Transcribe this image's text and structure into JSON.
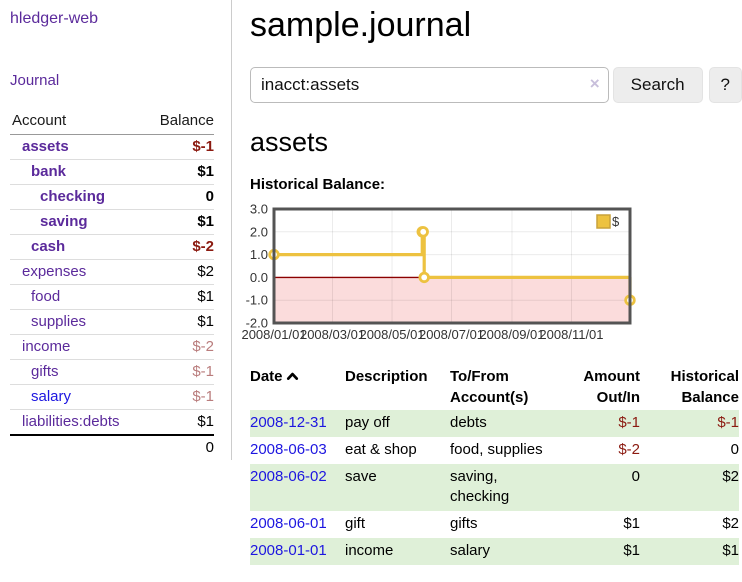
{
  "app": {
    "brand": "hledger-web"
  },
  "nav": {
    "journal": "Journal"
  },
  "sidebar": {
    "headers": {
      "account": "Account",
      "balance": "Balance"
    },
    "accounts": [
      {
        "name": "assets",
        "balance": "$-1"
      },
      {
        "name": "bank",
        "balance": "$1"
      },
      {
        "name": "checking",
        "balance": "0"
      },
      {
        "name": "saving",
        "balance": "$1"
      },
      {
        "name": "cash",
        "balance": "$-2"
      },
      {
        "name": "expenses",
        "balance": "$2"
      },
      {
        "name": "food",
        "balance": "$1"
      },
      {
        "name": "supplies",
        "balance": "$1"
      },
      {
        "name": "income",
        "balance": "$-2"
      },
      {
        "name": "gifts",
        "balance": "$-1"
      },
      {
        "name": "salary",
        "balance": "$-1"
      },
      {
        "name": "liabilities:debts",
        "balance": "$1"
      }
    ],
    "total": "0"
  },
  "header": {
    "title": "sample.journal"
  },
  "search": {
    "value": "inacct:assets",
    "clear_icon": "×",
    "button_label": "Search",
    "help_label": "?"
  },
  "account_page": {
    "heading": "assets",
    "chart_label": "Historical Balance:"
  },
  "chart_data": {
    "type": "line",
    "title": "Historical Balance:",
    "x_range": [
      "2008-01-01",
      "2008-12-31"
    ],
    "ylim": [
      -2,
      3
    ],
    "yticks": [
      {
        "v": 3,
        "label": "3.0"
      },
      {
        "v": 2,
        "label": "2.0"
      },
      {
        "v": 1,
        "label": "1.0"
      },
      {
        "v": 0,
        "label": "0.0"
      },
      {
        "v": -1,
        "label": "-1.0"
      },
      {
        "v": -2,
        "label": "-2.0"
      }
    ],
    "xticks": [
      {
        "d": "2008-01-01",
        "label": "2008/01/01"
      },
      {
        "d": "2008-03-01",
        "label": "2008/03/01"
      },
      {
        "d": "2008-05-01",
        "label": "2008/05/01"
      },
      {
        "d": "2008-07-01",
        "label": "2008/07/01"
      },
      {
        "d": "2008-09-01",
        "label": "2008/09/01"
      },
      {
        "d": "2008-11-01",
        "label": "2008/11/01"
      }
    ],
    "series": [
      {
        "name": "$",
        "color": "#edc240",
        "step": true,
        "points": [
          {
            "d": "2008-01-01",
            "v": 1
          },
          {
            "d": "2008-06-01",
            "v": 2
          },
          {
            "d": "2008-06-02",
            "v": 2
          },
          {
            "d": "2008-06-03",
            "v": 0
          },
          {
            "d": "2008-12-31",
            "v": -1
          }
        ]
      }
    ],
    "legend": {
      "position": "top-right",
      "label": "$"
    },
    "zero_line_color": "#8b0000",
    "negative_region_fill": "#fbdcdc",
    "grid": true
  },
  "register": {
    "columns": {
      "date": "Date",
      "description": "Description",
      "tofrom": "To/From Account(s)",
      "amount": "Amount Out/In",
      "balance": "Historical Balance"
    },
    "rows": [
      {
        "date": "2008-12-31",
        "description": "pay off",
        "accounts": "debts",
        "amount": "$-1",
        "balance": "$-1"
      },
      {
        "date": "2008-06-03",
        "description": "eat & shop",
        "accounts": "food, supplies",
        "amount": "$-2",
        "balance": "0"
      },
      {
        "date": "2008-06-02",
        "description": "save",
        "accounts": "saving, checking",
        "amount": "0",
        "balance": "$2"
      },
      {
        "date": "2008-06-01",
        "description": "gift",
        "accounts": "gifts",
        "amount": "$1",
        "balance": "$2"
      },
      {
        "date": "2008-01-01",
        "description": "income",
        "accounts": "salary",
        "amount": "$1",
        "balance": "$1"
      }
    ]
  },
  "colors": {
    "link_purple": "#5b2a9b",
    "link_blue": "#1d16e0",
    "negative_strong": "#8b1a10",
    "negative_muted": "#b97c7c",
    "row_stripe_green": "#dff0d8",
    "chart_line": "#edc240",
    "chart_negative_fill": "#fbdcdc",
    "chart_zero_line": "#8b0000"
  }
}
